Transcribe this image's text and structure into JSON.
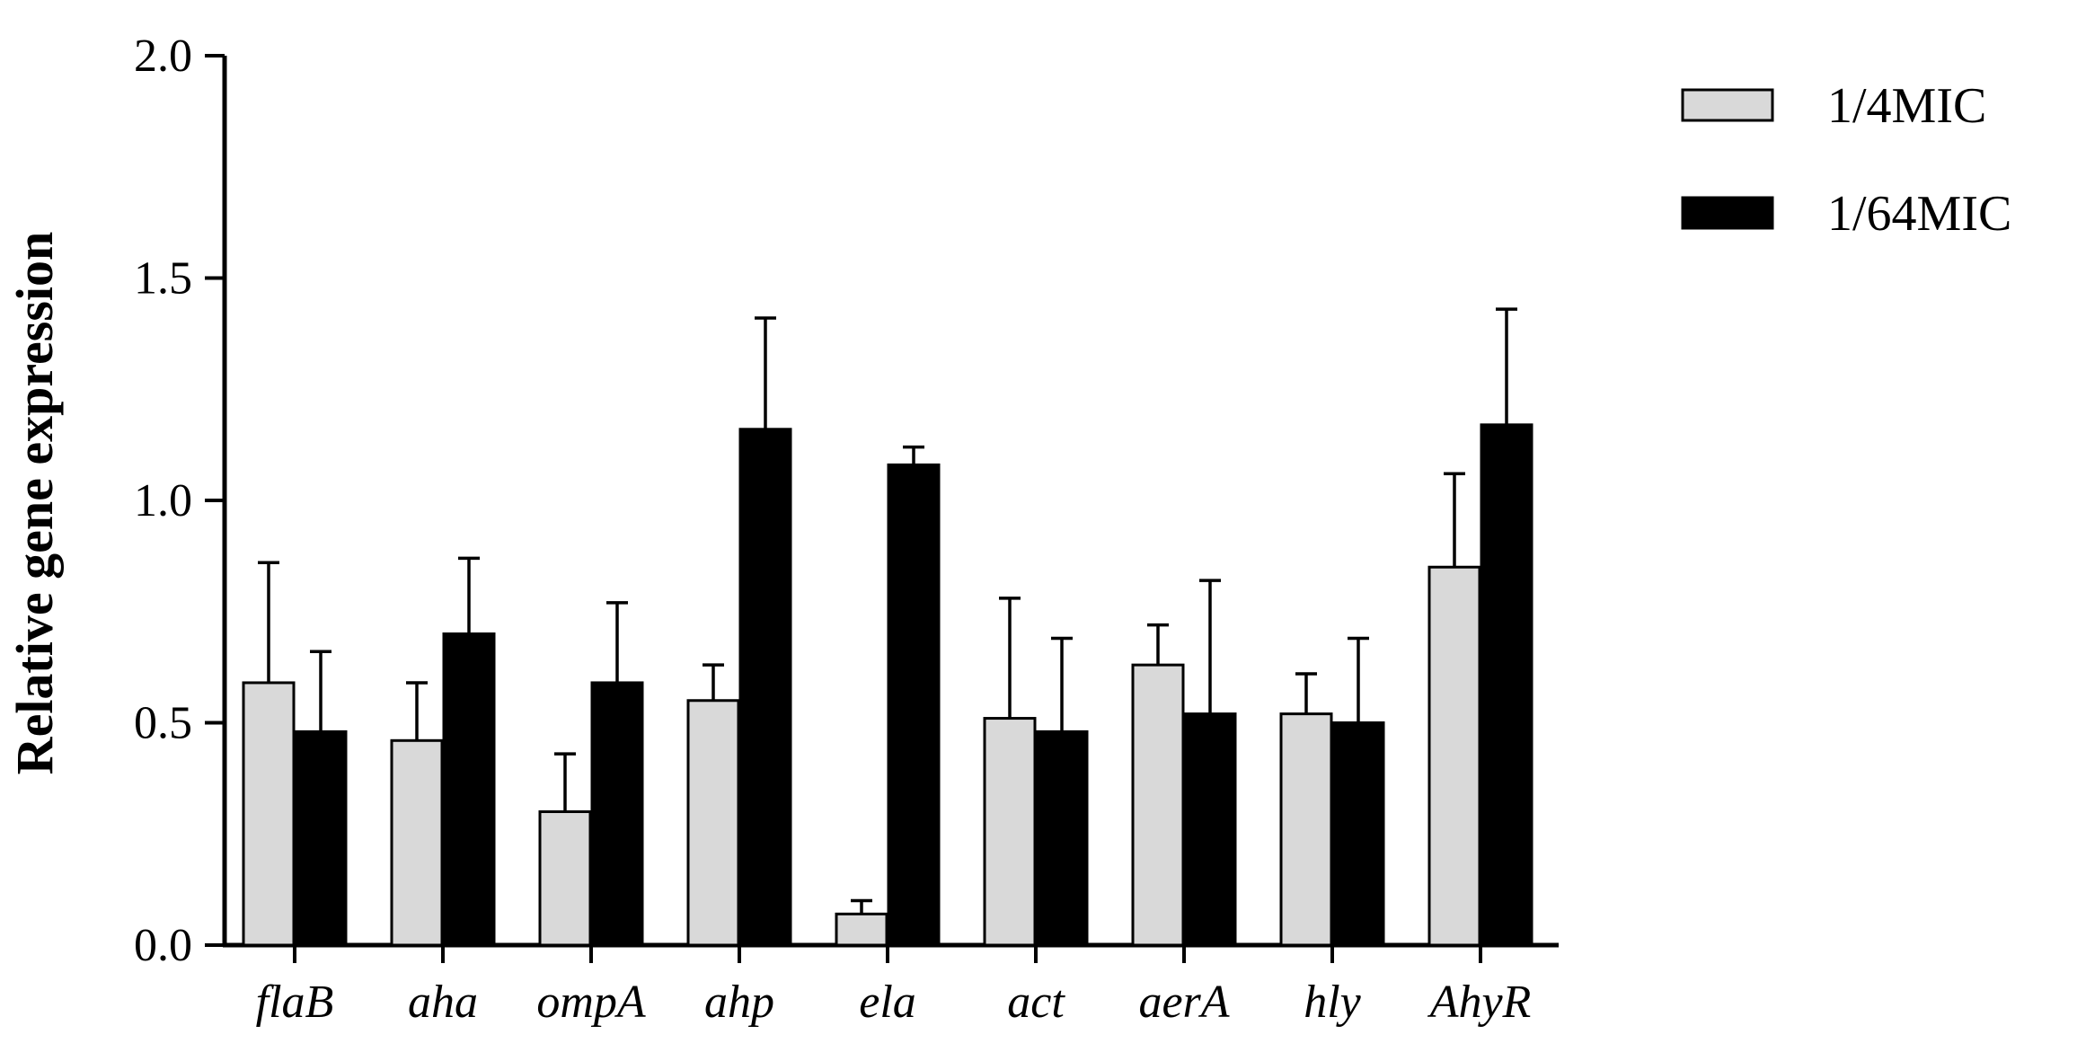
{
  "chart_data": {
    "type": "bar",
    "categories": [
      "flaB",
      "aha",
      "ompA",
      "ahp",
      "ela",
      "act",
      "aerA",
      "hly",
      "AhyR"
    ],
    "series": [
      {
        "name": "1/4MIC",
        "color": "#d9d9d9",
        "values": [
          0.59,
          0.46,
          0.3,
          0.55,
          0.07,
          0.51,
          0.63,
          0.52,
          0.85
        ],
        "errors": [
          0.27,
          0.13,
          0.13,
          0.08,
          0.03,
          0.27,
          0.09,
          0.09,
          0.21
        ]
      },
      {
        "name": "1/64MIC",
        "color": "#000000",
        "values": [
          0.48,
          0.7,
          0.59,
          1.16,
          1.08,
          0.48,
          0.52,
          0.5,
          1.17
        ],
        "errors": [
          0.18,
          0.17,
          0.18,
          0.25,
          0.04,
          0.21,
          0.3,
          0.19,
          0.26
        ]
      }
    ],
    "ylabel": "Relative gene expression",
    "ylim": [
      0,
      2.0
    ],
    "yticks": [
      "0.0",
      "0.5",
      "1.0",
      "1.5",
      "2.0"
    ],
    "legend_position": "top-right",
    "grid": false
  }
}
